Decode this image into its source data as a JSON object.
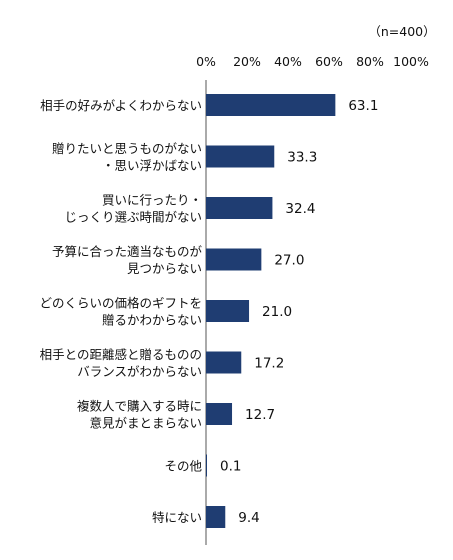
{
  "note": "（n=400）",
  "chart_data": {
    "type": "bar",
    "orientation": "horizontal",
    "title": "",
    "xlabel": "",
    "ylabel": "",
    "xlim": [
      0,
      100
    ],
    "ticks": [
      "0%",
      "20%",
      "40%",
      "60%",
      "80%",
      "100%"
    ],
    "categories": [
      [
        "相手の好みがよくわからない"
      ],
      [
        "贈りたいと思うものがない",
        "・思い浮かばない"
      ],
      [
        "買いに行ったり・",
        "じっくり選ぶ時間がない"
      ],
      [
        "予算に合った適当なものが",
        "見つからない"
      ],
      [
        "どのくらいの価格のギフトを",
        "贈るかわからない"
      ],
      [
        "相手との距離感と贈るものの",
        "バランスがわからない"
      ],
      [
        "複数人で購入する時に",
        "意見がまとまらない"
      ],
      [
        "その他"
      ],
      [
        "特にない"
      ]
    ],
    "values": [
      63.1,
      33.3,
      32.4,
      27.0,
      21.0,
      17.2,
      12.7,
      0.1,
      9.4
    ],
    "value_labels": [
      "63.1",
      "33.3",
      "32.4",
      "27.0",
      "21.0",
      "17.2",
      "12.7",
      "0.1",
      "9.4"
    ],
    "bar_color": "#1f3d72",
    "grid": false
  }
}
